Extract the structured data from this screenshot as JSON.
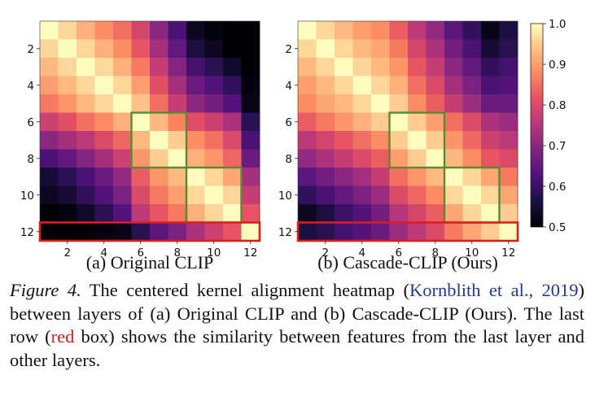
{
  "figure": {
    "panels": [
      {
        "subcaption": "(a) Original CLIP",
        "matrix": [
          [
            1.0,
            0.96,
            0.92,
            0.88,
            0.85,
            0.79,
            0.7,
            0.62,
            0.53,
            0.51,
            0.5,
            0.5
          ],
          [
            0.96,
            1.0,
            0.96,
            0.92,
            0.88,
            0.82,
            0.73,
            0.65,
            0.56,
            0.53,
            0.5,
            0.5
          ],
          [
            0.93,
            0.96,
            1.0,
            0.96,
            0.92,
            0.86,
            0.77,
            0.69,
            0.61,
            0.58,
            0.54,
            0.5
          ],
          [
            0.9,
            0.93,
            0.96,
            1.0,
            0.96,
            0.9,
            0.81,
            0.73,
            0.66,
            0.63,
            0.59,
            0.51
          ],
          [
            0.86,
            0.89,
            0.93,
            0.96,
            1.0,
            0.94,
            0.85,
            0.77,
            0.7,
            0.67,
            0.63,
            0.52
          ],
          [
            0.78,
            0.81,
            0.85,
            0.88,
            0.92,
            1.0,
            0.93,
            0.87,
            0.81,
            0.78,
            0.74,
            0.58
          ],
          [
            0.7,
            0.73,
            0.76,
            0.8,
            0.84,
            0.93,
            1.0,
            0.95,
            0.88,
            0.85,
            0.8,
            0.62
          ],
          [
            0.62,
            0.65,
            0.69,
            0.73,
            0.78,
            0.89,
            0.95,
            1.0,
            0.92,
            0.89,
            0.84,
            0.66
          ],
          [
            0.55,
            0.58,
            0.62,
            0.66,
            0.71,
            0.83,
            0.89,
            0.93,
            1.0,
            0.96,
            0.91,
            0.73
          ],
          [
            0.53,
            0.55,
            0.59,
            0.63,
            0.68,
            0.8,
            0.86,
            0.9,
            0.96,
            1.0,
            0.96,
            0.77
          ],
          [
            0.5,
            0.51,
            0.54,
            0.58,
            0.63,
            0.76,
            0.82,
            0.86,
            0.92,
            0.96,
            1.0,
            0.82
          ],
          [
            0.5,
            0.5,
            0.5,
            0.51,
            0.52,
            0.58,
            0.64,
            0.68,
            0.74,
            0.78,
            0.82,
            1.0
          ]
        ]
      },
      {
        "subcaption": "(b) Cascade-CLIP (Ours)",
        "matrix": [
          [
            1.0,
            0.96,
            0.93,
            0.9,
            0.88,
            0.83,
            0.76,
            0.71,
            0.64,
            0.59,
            0.52,
            0.56
          ],
          [
            0.96,
            1.0,
            0.96,
            0.93,
            0.91,
            0.86,
            0.79,
            0.74,
            0.67,
            0.62,
            0.55,
            0.58
          ],
          [
            0.93,
            0.96,
            1.0,
            0.96,
            0.93,
            0.89,
            0.82,
            0.77,
            0.7,
            0.65,
            0.59,
            0.61
          ],
          [
            0.9,
            0.93,
            0.96,
            1.0,
            0.96,
            0.92,
            0.85,
            0.8,
            0.73,
            0.68,
            0.62,
            0.63
          ],
          [
            0.88,
            0.91,
            0.93,
            0.96,
            1.0,
            0.95,
            0.88,
            0.83,
            0.77,
            0.72,
            0.66,
            0.66
          ],
          [
            0.83,
            0.86,
            0.89,
            0.92,
            0.95,
            1.0,
            0.95,
            0.9,
            0.85,
            0.8,
            0.74,
            0.72
          ],
          [
            0.76,
            0.79,
            0.82,
            0.85,
            0.88,
            0.95,
            1.0,
            0.95,
            0.89,
            0.84,
            0.78,
            0.76
          ],
          [
            0.71,
            0.74,
            0.77,
            0.8,
            0.83,
            0.9,
            0.95,
            1.0,
            0.93,
            0.88,
            0.82,
            0.8
          ],
          [
            0.64,
            0.67,
            0.7,
            0.73,
            0.77,
            0.85,
            0.89,
            0.93,
            1.0,
            0.96,
            0.91,
            0.86
          ],
          [
            0.59,
            0.62,
            0.65,
            0.68,
            0.72,
            0.8,
            0.84,
            0.88,
            0.96,
            1.0,
            0.96,
            0.91
          ],
          [
            0.53,
            0.56,
            0.6,
            0.63,
            0.67,
            0.75,
            0.79,
            0.83,
            0.91,
            0.96,
            1.0,
            0.95
          ],
          [
            0.56,
            0.58,
            0.61,
            0.63,
            0.66,
            0.72,
            0.76,
            0.8,
            0.86,
            0.91,
            0.95,
            1.0
          ]
        ]
      }
    ],
    "x_ticks": [
      "2",
      "4",
      "6",
      "8",
      "10",
      "12"
    ],
    "y_ticks": [
      "2",
      "4",
      "6",
      "8",
      "10",
      "12"
    ],
    "colorbar": {
      "ticks": [
        "1.0",
        "0.9",
        "0.8",
        "0.7",
        "0.6",
        "0.5"
      ],
      "min": 0.5,
      "max": 1.0
    },
    "green_box_color": "#5a8a2f",
    "red_box_color": "#e11b1b"
  },
  "caption": {
    "label": "Figure 4.",
    "text_1": " The centered kernel alignment heatmap (",
    "cite": "Kornblith et al., 2019",
    "text_2": ") between layers of (a) Original CLIP and (b) Cascade-CLIP (Ours). The last row (",
    "red_word": "red",
    "text_3": " box) shows the similarity between features from the last layer and other layers."
  }
}
